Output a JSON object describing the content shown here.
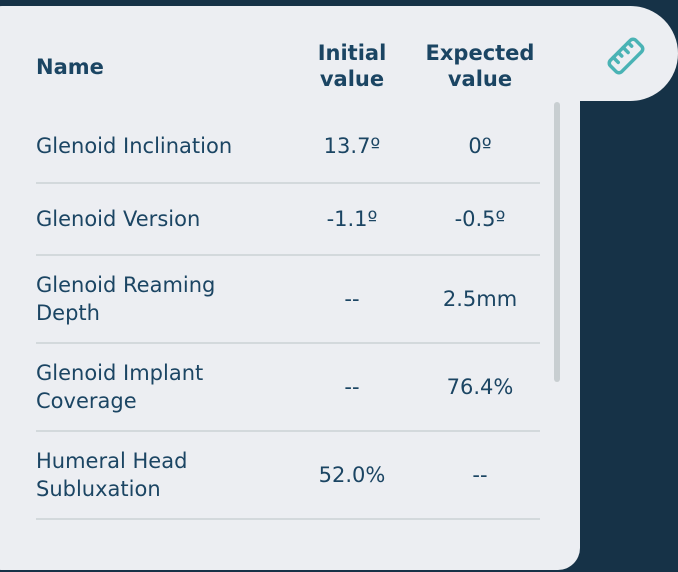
{
  "header": {
    "name": "Name",
    "initial": "Initial value",
    "expected": "Expected value"
  },
  "icon": "ruler-icon",
  "accent": "#4ab3b5",
  "rows": [
    {
      "name": "Glenoid Inclination",
      "initial": "13.7º",
      "expected": "0º"
    },
    {
      "name": "Glenoid Version",
      "initial": "-1.1º",
      "expected": "-0.5º"
    },
    {
      "name": "Glenoid Reaming Depth",
      "initial": "--",
      "expected": "2.5mm"
    },
    {
      "name": "Glenoid Implant Coverage",
      "initial": "--",
      "expected": "76.4%"
    },
    {
      "name": "Humeral Head Subluxation",
      "initial": "52.0%",
      "expected": "--"
    }
  ]
}
